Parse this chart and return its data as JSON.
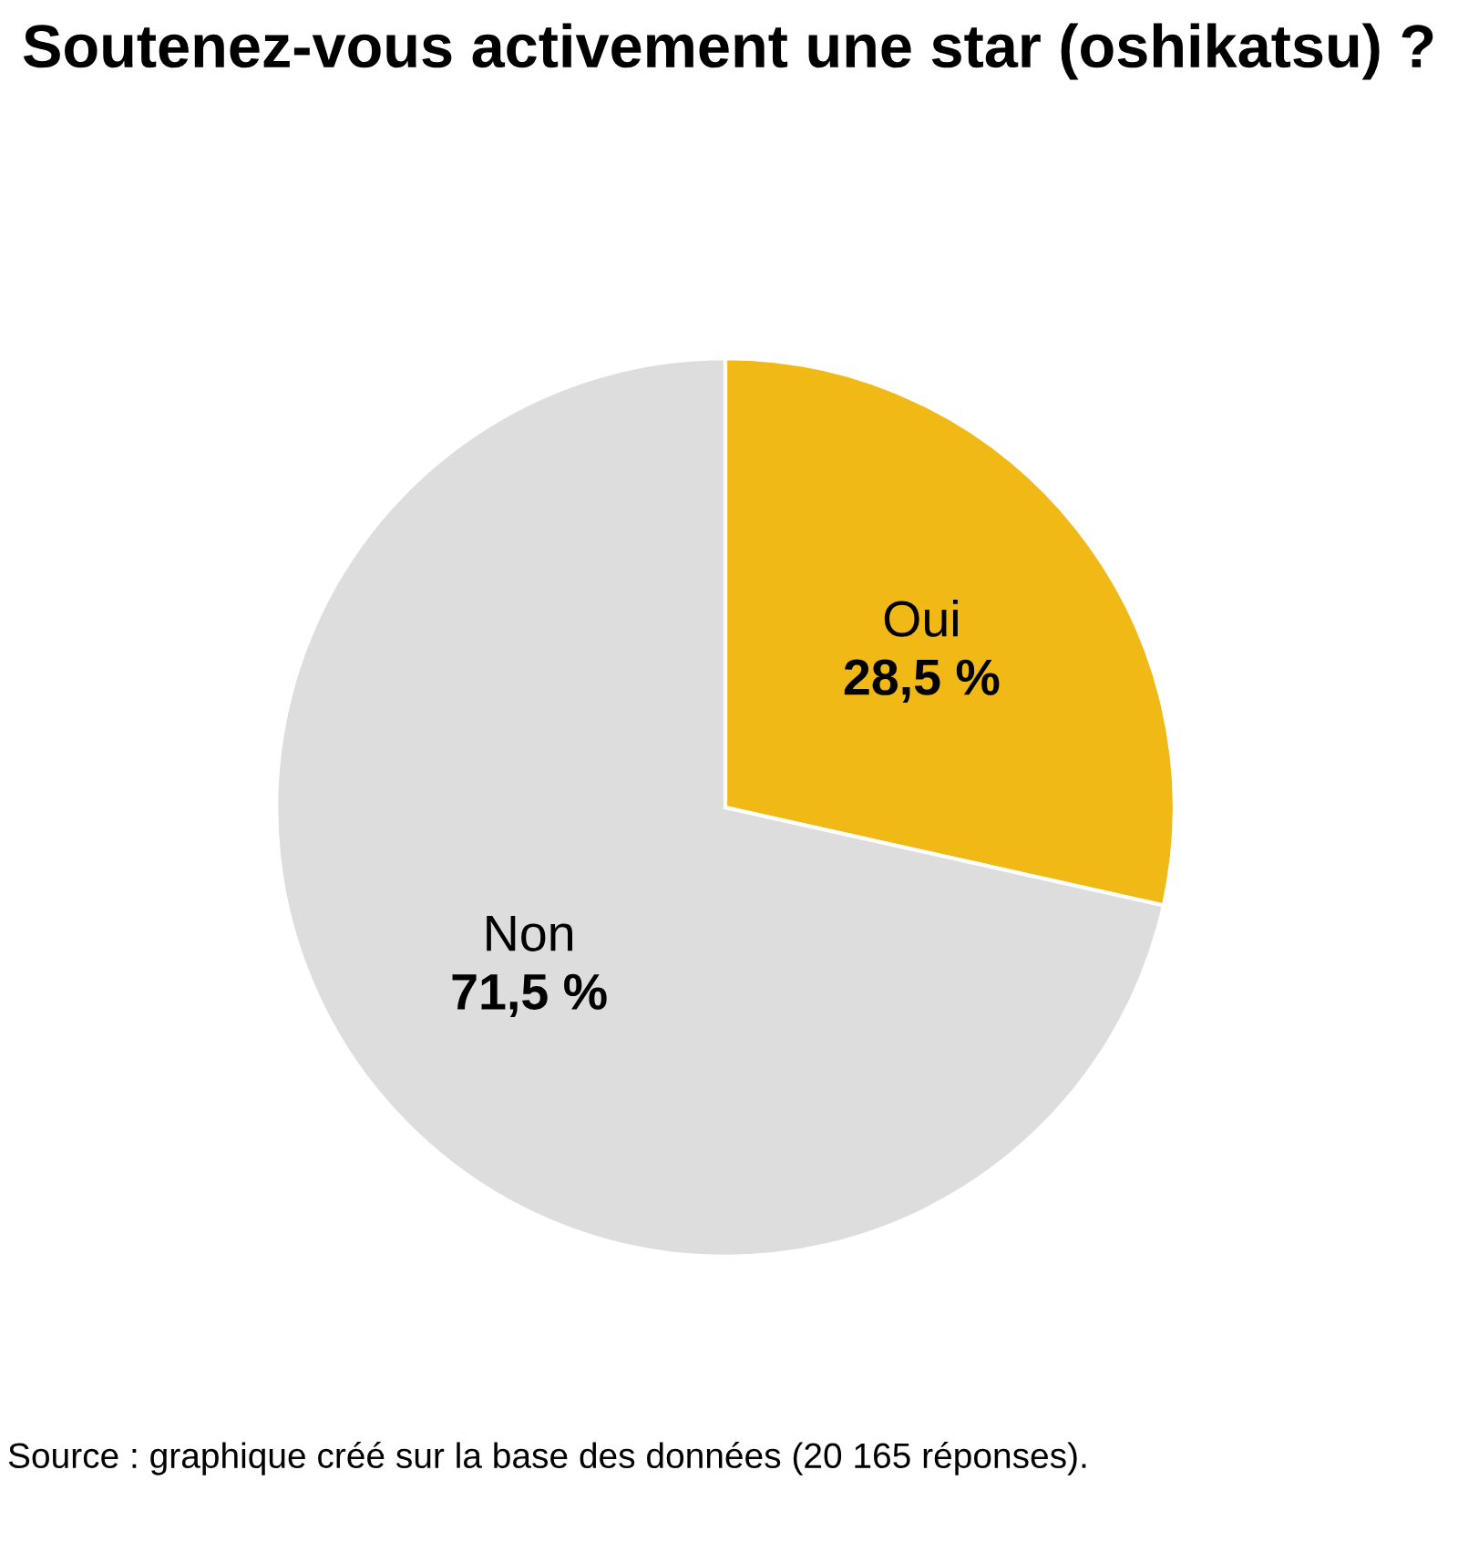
{
  "chart_data": {
    "type": "pie",
    "title": "Soutenez-vous activement une star (oshikatsu) ?",
    "categories": [
      "Oui",
      "Non"
    ],
    "values": [
      28.5,
      71.5
    ],
    "value_labels": [
      "28,5 %",
      "71,5 %"
    ],
    "colors": [
      "#f0b916",
      "#dddddd"
    ],
    "annotations": [
      "Source : graphique créé sur la base des données (20 165 réponses)."
    ]
  }
}
